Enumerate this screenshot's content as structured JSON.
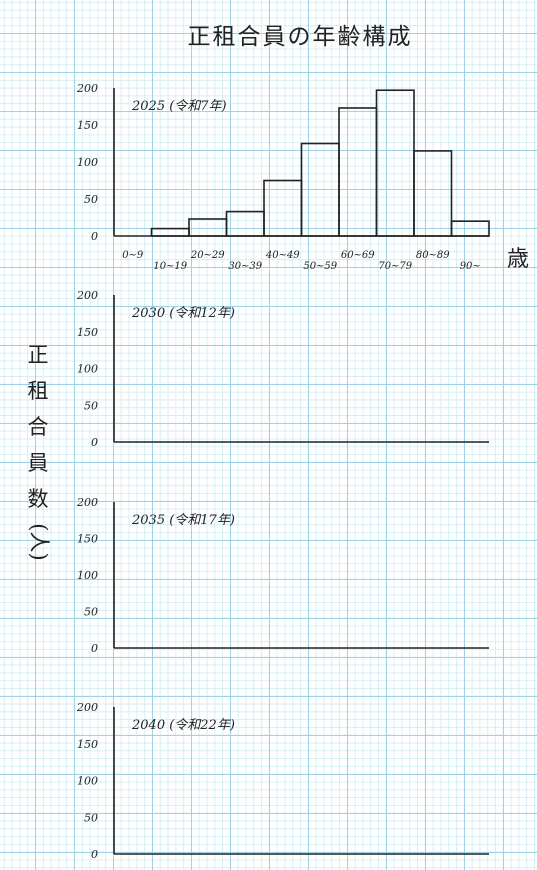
{
  "page": {
    "title": "正租合員の年齢構成",
    "ylabel_chars": [
      "正",
      "租",
      "合",
      "員",
      "数",
      "(人)"
    ],
    "x_unit": "歳"
  },
  "chart_data": [
    {
      "type": "bar",
      "title": "2025 (令和7年)",
      "categories": [
        "0~9",
        "10~19",
        "20~29",
        "30~39",
        "40~49",
        "50~59",
        "60~69",
        "70~79",
        "80~89",
        "90~"
      ],
      "values": [
        0,
        10,
        23,
        33,
        75,
        125,
        173,
        197,
        115,
        20
      ],
      "ylim": [
        0,
        200
      ],
      "yticks": [
        0,
        50,
        100,
        150,
        200
      ],
      "ylabel": "正租合員数(人)",
      "xlabel": "歳"
    },
    {
      "type": "bar",
      "title": "2030 (令和12年)",
      "categories": [],
      "values": [],
      "ylim": [
        0,
        200
      ],
      "yticks": [
        0,
        50,
        100,
        150,
        200
      ]
    },
    {
      "type": "bar",
      "title": "2035 (令和17年)",
      "categories": [],
      "values": [],
      "ylim": [
        0,
        200
      ],
      "yticks": [
        0,
        50,
        100,
        150,
        200
      ]
    },
    {
      "type": "bar",
      "title": "2040 (令和22年)",
      "categories": [],
      "values": [],
      "ylim": [
        0,
        200
      ],
      "yticks": [
        0,
        50,
        100,
        150,
        200
      ]
    }
  ]
}
